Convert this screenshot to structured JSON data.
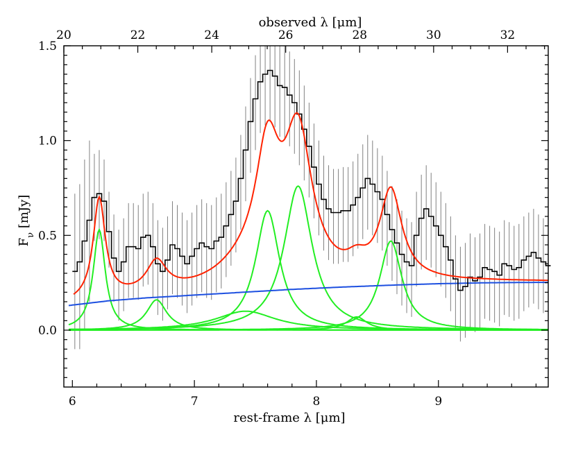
{
  "chart_data": {
    "type": "line",
    "xlabel": "rest-frame λ [μm]",
    "x2label": "observed λ [μm]",
    "ylabel": "F_ν [mJy]",
    "xlim": [
      5.93,
      9.9
    ],
    "ylim": [
      -0.3,
      1.5
    ],
    "x2lim": [
      20.0,
      33.1
    ],
    "x_ticks": [
      6,
      7,
      8,
      9
    ],
    "x2_ticks": [
      20,
      22,
      24,
      26,
      28,
      30,
      32
    ],
    "y_ticks": [
      0.0,
      0.5,
      1.0,
      1.5
    ],
    "y_tick_labels": [
      "0.0",
      "0.5",
      "1.0",
      "1.5"
    ],
    "grid": false,
    "colors": {
      "data": "#000000",
      "errorbar": "#808080",
      "total_fit": "#ff2200",
      "continuum": "#1c4fe0",
      "components": "#22ee22"
    },
    "data_step": {
      "x": [
        6.0,
        6.04,
        6.08,
        6.12,
        6.16,
        6.2,
        6.24,
        6.28,
        6.32,
        6.36,
        6.4,
        6.44,
        6.48,
        6.52,
        6.56,
        6.6,
        6.64,
        6.68,
        6.72,
        6.76,
        6.8,
        6.84,
        6.88,
        6.92,
        6.96,
        7.0,
        7.04,
        7.08,
        7.12,
        7.16,
        7.2,
        7.24,
        7.28,
        7.32,
        7.36,
        7.4,
        7.44,
        7.48,
        7.52,
        7.56,
        7.6,
        7.64,
        7.68,
        7.72,
        7.76,
        7.8,
        7.84,
        7.88,
        7.92,
        7.96,
        8.0,
        8.04,
        8.08,
        8.12,
        8.16,
        8.2,
        8.24,
        8.28,
        8.32,
        8.36,
        8.4,
        8.44,
        8.48,
        8.52,
        8.56,
        8.6,
        8.64,
        8.68,
        8.72,
        8.76,
        8.8,
        8.84,
        8.88,
        8.92,
        8.96,
        9.0,
        9.04,
        9.08,
        9.12,
        9.16,
        9.2,
        9.24,
        9.28,
        9.32,
        9.36,
        9.4,
        9.44,
        9.48,
        9.52,
        9.56,
        9.6,
        9.64,
        9.68,
        9.72,
        9.76,
        9.8,
        9.84,
        9.88
      ],
      "y": [
        0.31,
        0.36,
        0.47,
        0.58,
        0.7,
        0.72,
        0.68,
        0.52,
        0.38,
        0.31,
        0.36,
        0.44,
        0.44,
        0.43,
        0.49,
        0.5,
        0.44,
        0.35,
        0.31,
        0.37,
        0.45,
        0.43,
        0.39,
        0.35,
        0.39,
        0.43,
        0.46,
        0.44,
        0.43,
        0.47,
        0.49,
        0.55,
        0.61,
        0.68,
        0.8,
        0.95,
        1.1,
        1.22,
        1.31,
        1.35,
        1.37,
        1.34,
        1.29,
        1.28,
        1.24,
        1.2,
        1.14,
        1.06,
        0.97,
        0.86,
        0.77,
        0.69,
        0.64,
        0.62,
        0.62,
        0.63,
        0.63,
        0.66,
        0.7,
        0.75,
        0.8,
        0.77,
        0.73,
        0.69,
        0.61,
        0.53,
        0.46,
        0.4,
        0.36,
        0.34,
        0.5,
        0.59,
        0.64,
        0.6,
        0.55,
        0.5,
        0.44,
        0.37,
        0.27,
        0.21,
        0.23,
        0.28,
        0.26,
        0.28,
        0.33,
        0.32,
        0.31,
        0.29,
        0.35,
        0.34,
        0.32,
        0.33,
        0.37,
        0.39,
        0.41,
        0.38,
        0.36,
        0.34
      ],
      "err_lo": [
        -0.1,
        -0.1,
        0.0,
        0.15,
        0.47,
        0.48,
        0.47,
        0.33,
        0.15,
        0.05,
        0.1,
        0.17,
        0.17,
        0.16,
        0.23,
        0.24,
        0.17,
        0.08,
        0.05,
        0.11,
        0.19,
        0.17,
        0.13,
        0.09,
        0.13,
        0.17,
        0.2,
        0.17,
        0.16,
        0.2,
        0.22,
        0.28,
        0.34,
        0.41,
        0.53,
        0.68,
        0.83,
        0.95,
        1.04,
        1.08,
        1.1,
        1.07,
        1.02,
        1.01,
        0.97,
        0.93,
        0.87,
        0.79,
        0.7,
        0.59,
        0.5,
        0.42,
        0.37,
        0.35,
        0.35,
        0.36,
        0.36,
        0.39,
        0.43,
        0.48,
        0.53,
        0.5,
        0.46,
        0.42,
        0.34,
        0.26,
        0.19,
        0.13,
        0.09,
        0.07,
        0.23,
        0.32,
        0.37,
        0.33,
        0.28,
        0.23,
        0.17,
        0.1,
        0.0,
        -0.06,
        -0.04,
        0.01,
        -0.01,
        0.01,
        0.06,
        0.05,
        0.04,
        0.02,
        0.08,
        0.07,
        0.05,
        0.06,
        0.1,
        0.12,
        0.14,
        0.11,
        0.09,
        0.07
      ],
      "err_hi": [
        0.72,
        0.77,
        0.9,
        1.0,
        0.93,
        0.95,
        0.9,
        0.73,
        0.61,
        0.53,
        0.59,
        0.67,
        0.67,
        0.66,
        0.72,
        0.73,
        0.67,
        0.58,
        0.54,
        0.6,
        0.68,
        0.66,
        0.62,
        0.58,
        0.62,
        0.66,
        0.69,
        0.67,
        0.66,
        0.7,
        0.72,
        0.78,
        0.84,
        0.91,
        1.03,
        1.18,
        1.33,
        1.45,
        1.54,
        1.58,
        1.6,
        1.57,
        1.52,
        1.51,
        1.47,
        1.43,
        1.37,
        1.29,
        1.2,
        1.09,
        1.0,
        0.92,
        0.87,
        0.85,
        0.85,
        0.86,
        0.86,
        0.89,
        0.93,
        0.98,
        1.03,
        1.0,
        0.96,
        0.92,
        0.84,
        0.76,
        0.69,
        0.63,
        0.59,
        0.57,
        0.73,
        0.82,
        0.87,
        0.83,
        0.78,
        0.73,
        0.67,
        0.6,
        0.5,
        0.44,
        0.46,
        0.51,
        0.49,
        0.51,
        0.56,
        0.55,
        0.54,
        0.52,
        0.58,
        0.57,
        0.55,
        0.56,
        0.6,
        0.62,
        0.64,
        0.61,
        0.59,
        0.57
      ]
    },
    "continuum": {
      "x": [
        5.97,
        6.3,
        6.6,
        7.0,
        7.4,
        7.8,
        8.2,
        8.6,
        9.0,
        9.4,
        9.8,
        9.9
      ],
      "y": [
        0.13,
        0.155,
        0.17,
        0.185,
        0.2,
        0.215,
        0.227,
        0.237,
        0.245,
        0.25,
        0.252,
        0.252
      ]
    },
    "components": [
      {
        "center": 6.22,
        "height": 0.53,
        "gamma": 0.06
      },
      {
        "center": 6.69,
        "height": 0.16,
        "gamma": 0.1
      },
      {
        "center": 7.42,
        "height": 0.1,
        "gamma": 0.3
      },
      {
        "center": 7.6,
        "height": 0.63,
        "gamma": 0.12
      },
      {
        "center": 7.85,
        "height": 0.76,
        "gamma": 0.14
      },
      {
        "center": 8.33,
        "height": 0.07,
        "gamma": 0.1
      },
      {
        "center": 8.61,
        "height": 0.47,
        "gamma": 0.11
      }
    ]
  }
}
